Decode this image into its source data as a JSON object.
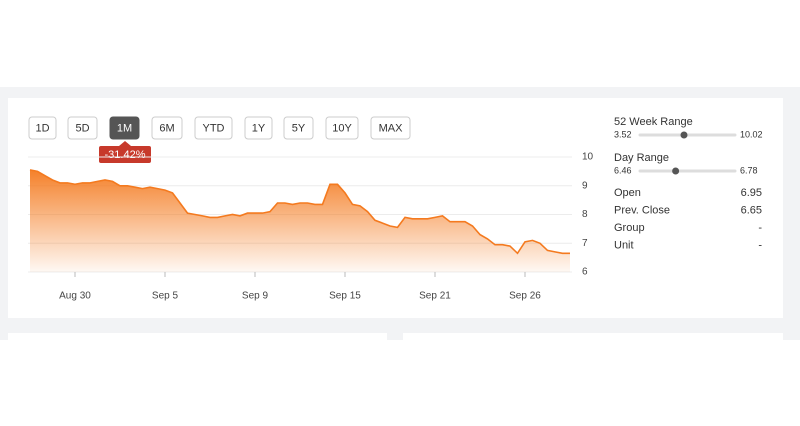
{
  "buttons": [
    "1D",
    "5D",
    "1M",
    "6M",
    "YTD",
    "1Y",
    "5Y",
    "10Y",
    "MAX"
  ],
  "active_button": 2,
  "change_badge": "-31.42%",
  "chart_data": {
    "type": "area",
    "color": "#f47a1f",
    "categories": [
      null,
      null,
      null,
      null,
      null,
      null,
      "Aug 30",
      null,
      null,
      null,
      null,
      null,
      null,
      null,
      null,
      null,
      null,
      null,
      "Sep 5",
      null,
      null,
      null,
      null,
      null,
      null,
      null,
      null,
      null,
      null,
      null,
      "Sep 9",
      null,
      null,
      null,
      null,
      null,
      null,
      null,
      null,
      null,
      null,
      null,
      "Sep 15",
      null,
      null,
      null,
      null,
      null,
      null,
      null,
      null,
      null,
      null,
      null,
      "Sep 21",
      null,
      null,
      null,
      null,
      null,
      null,
      null,
      null,
      null,
      null,
      null,
      "Sep 26",
      null,
      null,
      null,
      null,
      null,
      null
    ],
    "values": [
      9.55,
      9.5,
      9.35,
      9.2,
      9.1,
      9.1,
      9.05,
      9.1,
      9.1,
      9.15,
      9.2,
      9.15,
      9.0,
      9.0,
      8.95,
      8.9,
      8.95,
      8.9,
      8.85,
      8.75,
      8.4,
      8.05,
      8.0,
      7.95,
      7.9,
      7.9,
      7.95,
      8.0,
      7.95,
      8.05,
      8.05,
      8.05,
      8.1,
      8.4,
      8.4,
      8.35,
      8.4,
      8.4,
      8.35,
      8.35,
      9.05,
      9.05,
      8.75,
      8.35,
      8.3,
      8.1,
      7.8,
      7.7,
      7.6,
      7.55,
      7.9,
      7.85,
      7.85,
      7.85,
      7.9,
      7.95,
      7.75,
      7.75,
      7.75,
      7.6,
      7.3,
      7.15,
      6.95,
      6.95,
      6.9,
      6.65,
      7.05,
      7.1,
      7.0,
      6.75,
      6.7,
      6.65,
      6.65
    ],
    "ylim": [
      6,
      10
    ],
    "yticks": [
      6,
      7,
      8,
      9,
      10
    ],
    "grid": true
  },
  "ranges": [
    {
      "label": "52 Week Range",
      "low": 3.52,
      "high": 10.02,
      "marker": 6.53
    },
    {
      "label": "Day Range",
      "low": 6.46,
      "high": 6.78,
      "marker": 6.58
    }
  ],
  "stats": [
    {
      "label": "Open",
      "value": 6.95
    },
    {
      "label": "Prev. Close",
      "value": 6.65
    },
    {
      "label": "Group",
      "value": "-"
    },
    {
      "label": "Unit",
      "value": "-"
    }
  ]
}
